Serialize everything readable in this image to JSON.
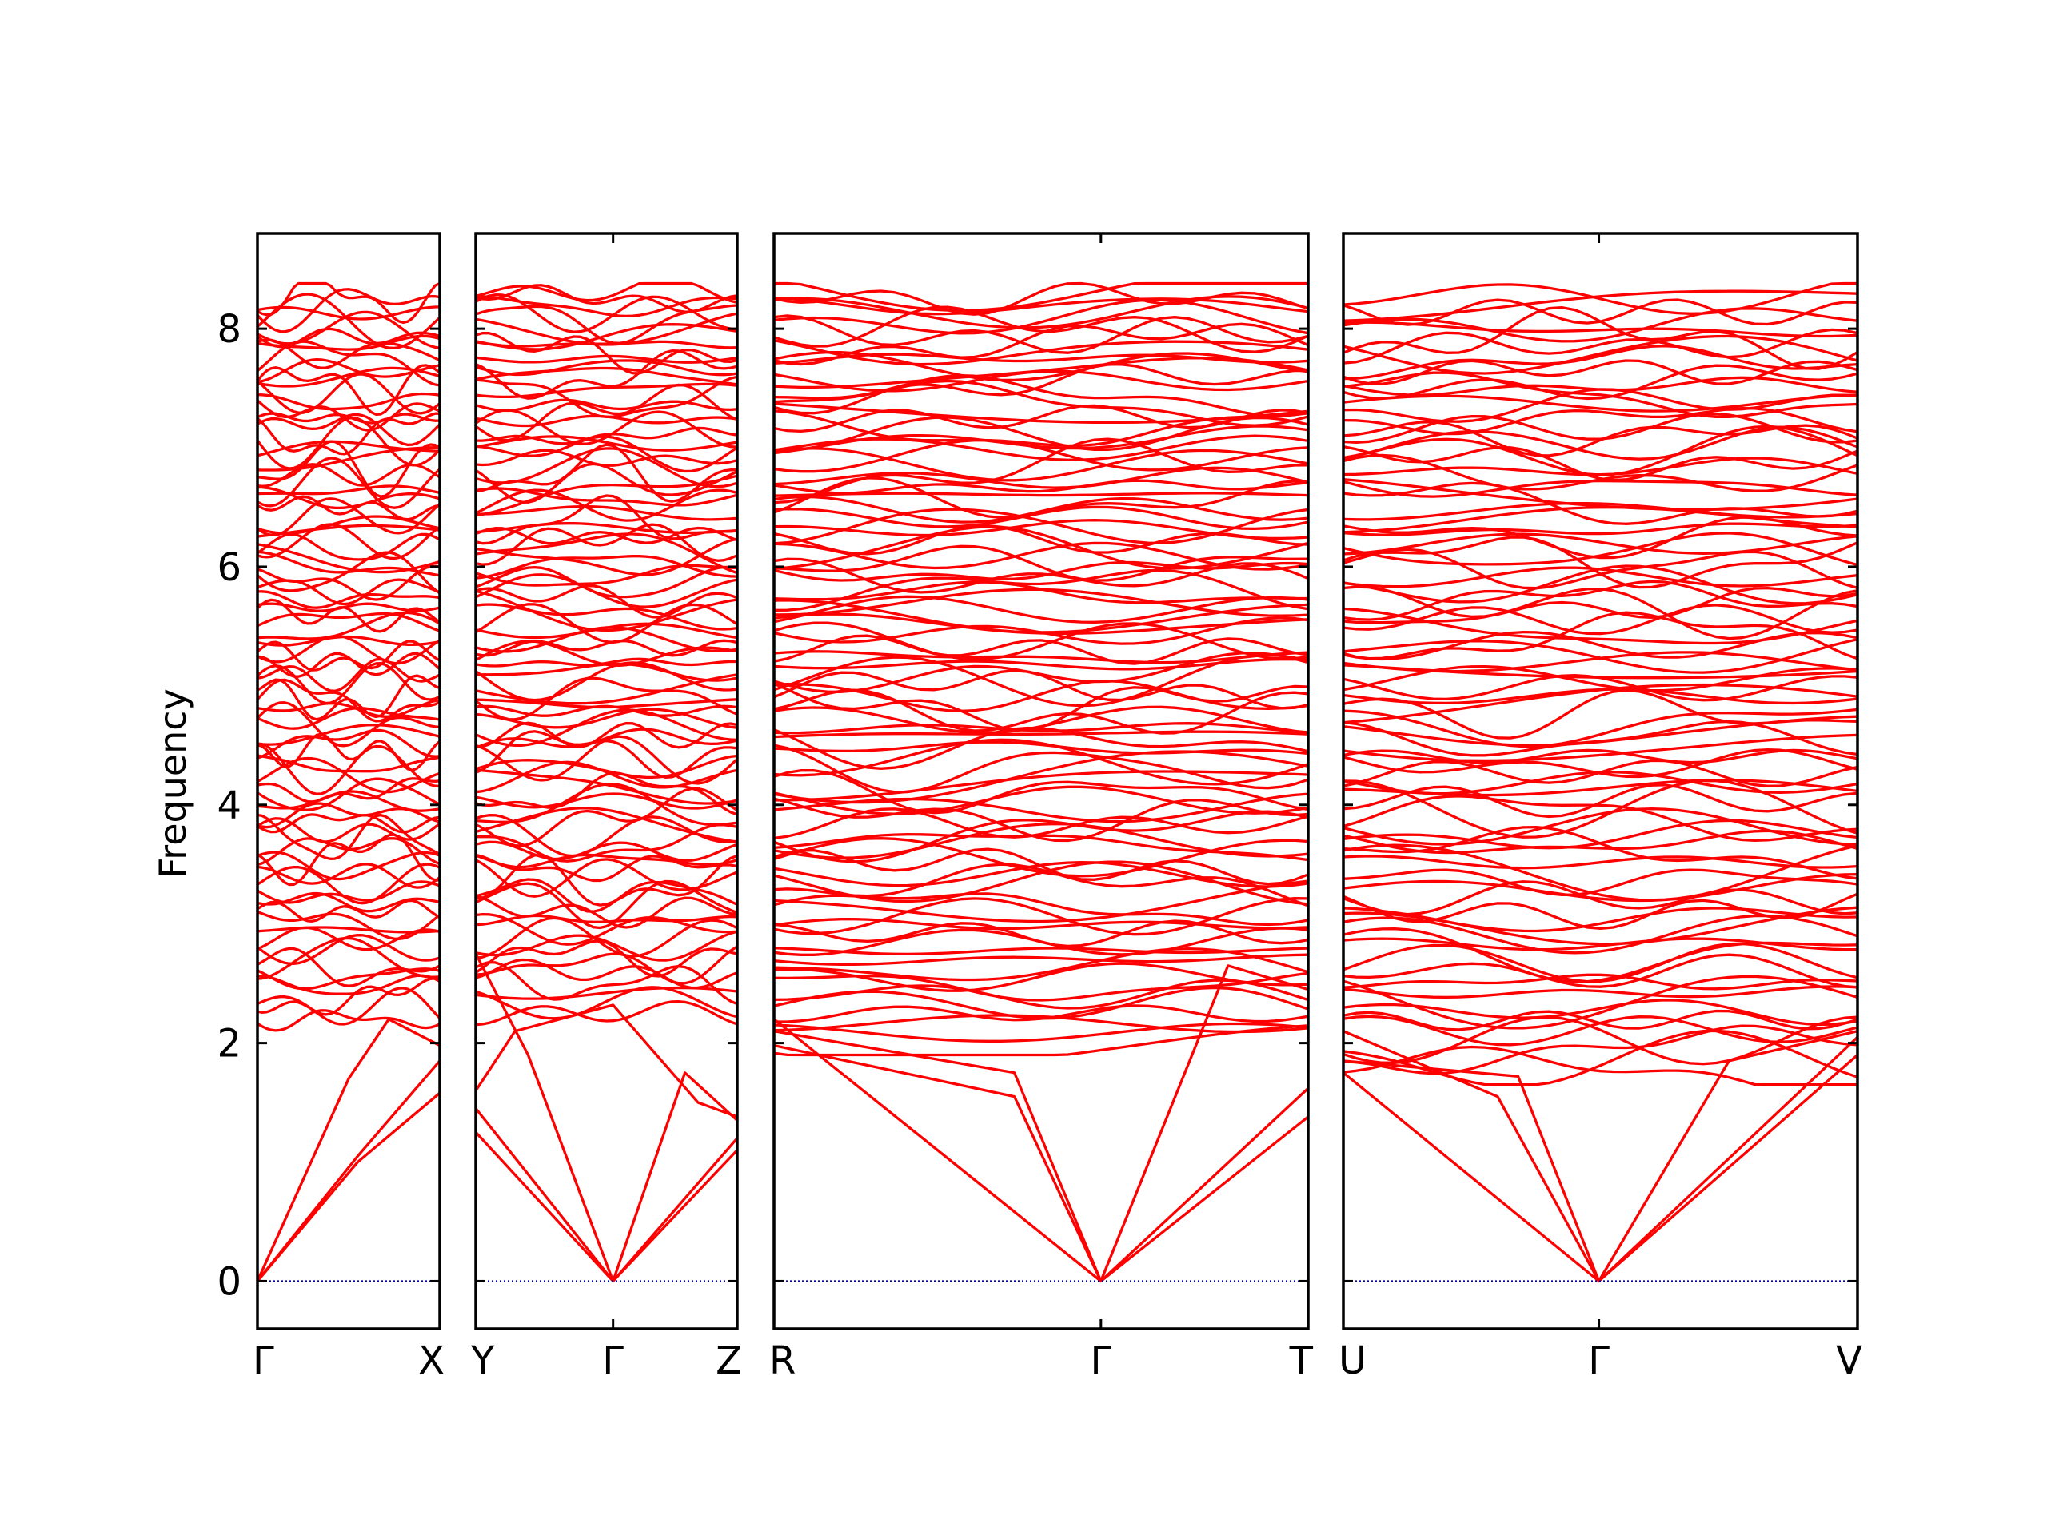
{
  "chart_data": {
    "type": "line",
    "title": "",
    "xlabel": "",
    "ylabel": "Frequency",
    "ylim": [
      -0.4,
      8.8
    ],
    "yticks": [
      0,
      2,
      4,
      6,
      8
    ],
    "grid": false,
    "legend": "none",
    "colors": {
      "bands": "#ff0000",
      "zero_line": "#0000aa",
      "frame": "#000000"
    },
    "panels": [
      {
        "id": "p1",
        "kpoint_labels": [
          "Γ",
          "X"
        ],
        "acoustic": [
          {
            "x": [
              0,
              0.55,
              1
            ],
            "y": [
              0,
              1.0,
              1.58
            ]
          },
          {
            "x": [
              0,
              0.55,
              1
            ],
            "y": [
              0,
              1.05,
              1.85
            ]
          },
          {
            "x": [
              0,
              0.5,
              0.72,
              1
            ],
            "y": [
              0,
              1.7,
              2.2,
              1.98
            ]
          }
        ],
        "optical_range": [
          2.15,
          8.3
        ],
        "optical_count": 85
      },
      {
        "id": "p2",
        "kpoint_labels": [
          "Y",
          "Γ",
          "Z"
        ],
        "gamma_at": 0.525,
        "acoustic": [
          {
            "x": [
              0,
              0.525,
              1
            ],
            "y": [
              1.25,
              0,
              1.2
            ]
          },
          {
            "x": [
              0,
              0.525,
              1
            ],
            "y": [
              1.45,
              0,
              1.1
            ]
          },
          {
            "x": [
              0,
              0.2,
              0.525,
              0.8,
              1
            ],
            "y": [
              2.75,
              1.9,
              0,
              1.75,
              1.35
            ]
          },
          {
            "x": [
              0,
              0.15,
              0.525,
              0.85,
              1
            ],
            "y": [
              1.6,
              2.1,
              2.32,
              1.5,
              1.38
            ]
          }
        ],
        "optical_range": [
          2.2,
          8.35
        ],
        "optical_count": 90
      },
      {
        "id": "p3",
        "kpoint_labels": [
          "R",
          "Γ",
          "T"
        ],
        "gamma_at": 0.612,
        "acoustic": [
          {
            "x": [
              0,
              0.45,
              0.612,
              1
            ],
            "y": [
              2.1,
              1.75,
              0,
              1.38
            ]
          },
          {
            "x": [
              0,
              0.45,
              0.612,
              1
            ],
            "y": [
              1.98,
              1.55,
              0,
              1.62
            ]
          },
          {
            "x": [
              0,
              0.612,
              0.85,
              1
            ],
            "y": [
              2.2,
              0,
              2.65,
              2.45
            ]
          }
        ],
        "optical_range": [
          1.95,
          8.35
        ],
        "optical_count": 95
      },
      {
        "id": "p4",
        "kpoint_labels": [
          "U",
          "Γ",
          "V"
        ],
        "gamma_at": 0.497,
        "acoustic": [
          {
            "x": [
              0,
              0.34,
              0.497,
              1
            ],
            "y": [
              1.85,
              1.72,
              0,
              2.05
            ]
          },
          {
            "x": [
              0,
              0.3,
              0.497,
              1
            ],
            "y": [
              2.1,
              1.55,
              0,
              1.9
            ]
          },
          {
            "x": [
              0,
              0.497,
              0.75,
              1
            ],
            "y": [
              1.75,
              0,
              1.85,
              2.1
            ]
          }
        ],
        "optical_range": [
          1.7,
          8.3
        ],
        "optical_count": 90
      }
    ]
  }
}
